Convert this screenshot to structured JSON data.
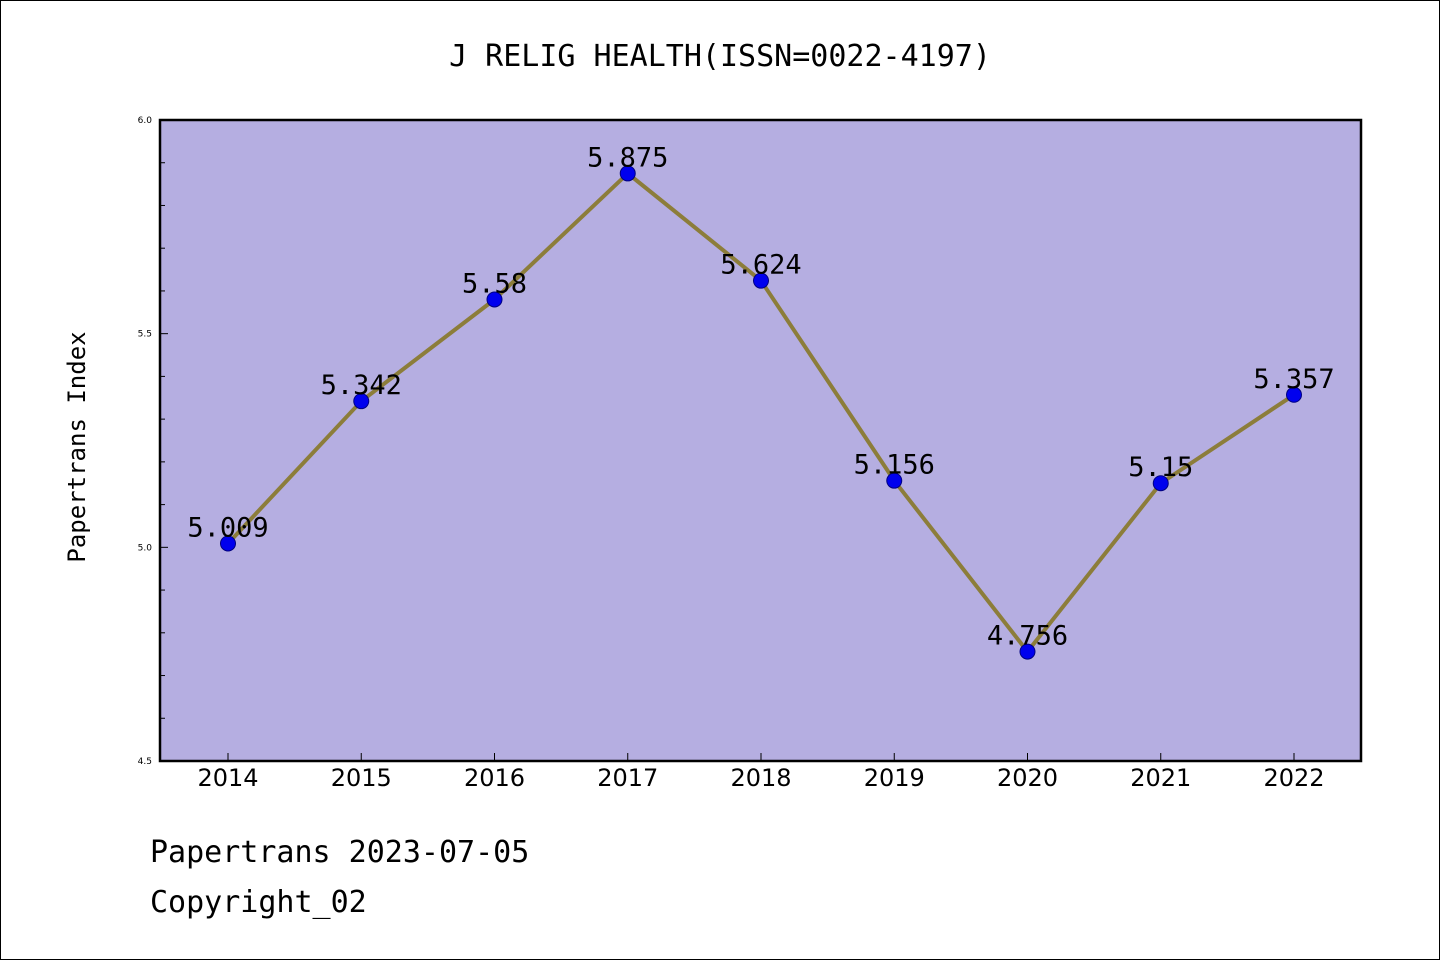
{
  "chart_data": {
    "type": "line",
    "title": "J RELIG HEALTH(ISSN=0022-4197)",
    "xlabel": "",
    "ylabel": "Papertrans Index",
    "categories": [
      "2014",
      "2015",
      "2016",
      "2017",
      "2018",
      "2019",
      "2020",
      "2021",
      "2022"
    ],
    "series": [
      {
        "values": [
          5.009,
          5.342,
          5.58,
          5.875,
          5.624,
          5.156,
          4.756,
          5.15,
          5.357
        ],
        "labels": [
          "5.009",
          "5.342",
          "5.58",
          "5.875",
          "5.624",
          "5.156",
          "4.756",
          "5.15",
          "5.357"
        ]
      }
    ],
    "ylim": [
      4.5,
      6.0
    ],
    "yticks": [
      "4.5",
      "5.0",
      "5.5",
      "6.0"
    ],
    "grid": false,
    "colors": {
      "plot_background": "#b5aee1",
      "line": "#8c7d3a",
      "marker": "#0000ee",
      "marker_edge": "#000080"
    }
  },
  "footer": {
    "source": "Papertrans 2023-07-05",
    "copyright": "Copyright_02"
  }
}
